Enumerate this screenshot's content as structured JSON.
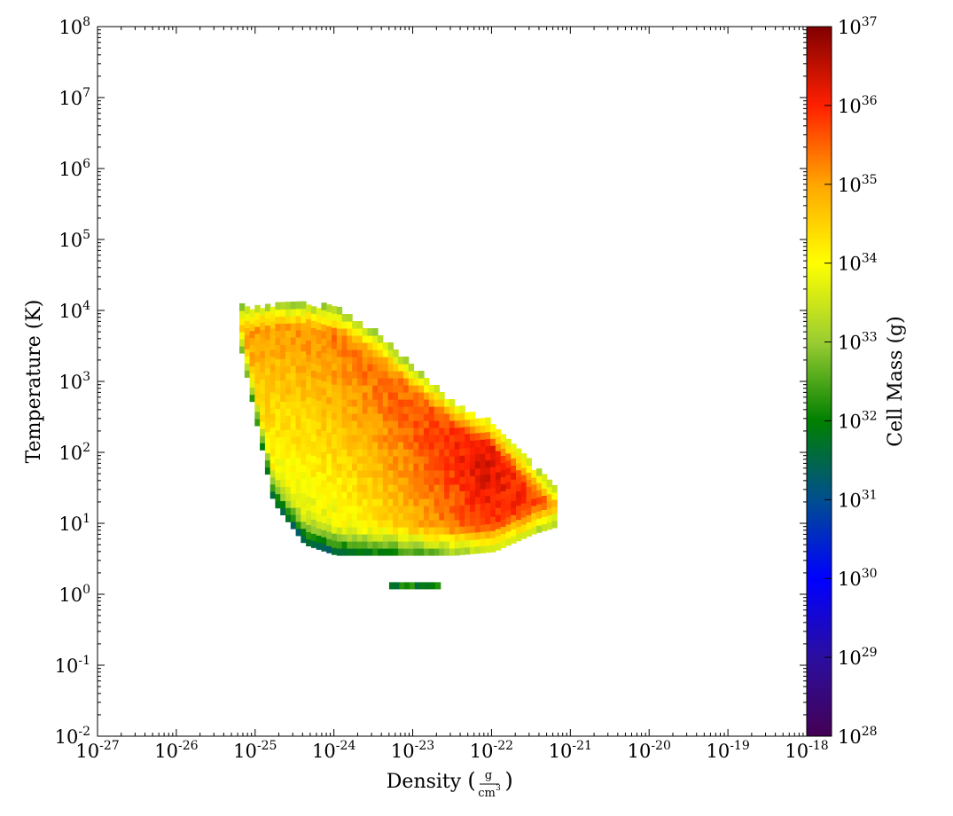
{
  "chart_data": {
    "type": "heatmap",
    "title": "",
    "xlabel": "Density",
    "xlabel_unit_numerator": "g",
    "xlabel_unit_denominator": "cm",
    "xlabel_unit_denominator_exp": "3",
    "ylabel": "Temperature  (K)",
    "colorbar_label": "Cell Mass  (g)",
    "x_scale": "log",
    "y_scale": "log",
    "color_scale": "log",
    "x_log_range": [
      -27,
      -18
    ],
    "y_log_range": [
      -2,
      8
    ],
    "color_log_range": [
      28,
      37
    ],
    "x_tick_exponents": [
      "-27",
      "-26",
      "-25",
      "-24",
      "-23",
      "-22",
      "-21",
      "-20",
      "-19",
      "-18"
    ],
    "y_tick_exponents": [
      "-2",
      "-1",
      "0",
      "1",
      "2",
      "3",
      "4",
      "5",
      "6",
      "7",
      "8"
    ],
    "colorbar_tick_exponents": [
      "28",
      "29",
      "30",
      "31",
      "32",
      "33",
      "34",
      "35",
      "36",
      "37"
    ],
    "tick_base": "10",
    "colormap": [
      "#440154",
      "#2b0ea0",
      "#0000ff",
      "#004f8f",
      "#008000",
      "#9acd32",
      "#ffff00",
      "#ffa500",
      "#ff2000",
      "#800000"
    ],
    "description_of_data": "2D mass-weighted phase histogram: log10 cell mass per (log density, log temperature) bin",
    "main_band": {
      "points": [
        {
          "log_density": -24.6,
          "log_temperature": 3.92,
          "log_mass": 35.2
        },
        {
          "log_density": -24.0,
          "log_temperature": 3.55,
          "log_mass": 35.3
        },
        {
          "log_density": -23.5,
          "log_temperature": 2.95,
          "log_mass": 35.4
        },
        {
          "log_density": -23.0,
          "log_temperature": 2.3,
          "log_mass": 35.6
        },
        {
          "log_density": -22.5,
          "log_temperature": 1.95,
          "log_mass": 36.0
        },
        {
          "log_density": -22.1,
          "log_temperature": 1.7,
          "log_mass": 36.3
        },
        {
          "log_density": -21.6,
          "log_temperature": 1.3,
          "log_mass": 35.9
        },
        {
          "log_density": -21.2,
          "log_temperature": 1.15,
          "log_mass": 35.4
        }
      ]
    },
    "extent": [
      {
        "log_density": -25.2,
        "log_temperature_min": 3.4,
        "log_temperature_max": 4.0
      },
      {
        "log_density": -24.8,
        "log_temperature_min": 1.3,
        "log_temperature_max": 4.05
      },
      {
        "log_density": -24.4,
        "log_temperature_min": 0.7,
        "log_temperature_max": 4.05
      },
      {
        "log_density": -24.0,
        "log_temperature_min": 0.55,
        "log_temperature_max": 4.0
      },
      {
        "log_density": -23.5,
        "log_temperature_min": 0.55,
        "log_temperature_max": 3.65
      },
      {
        "log_density": -23.0,
        "log_temperature_min": 0.55,
        "log_temperature_max": 3.15
      },
      {
        "log_density": -22.5,
        "log_temperature_min": 0.55,
        "log_temperature_max": 2.65
      },
      {
        "log_density": -22.0,
        "log_temperature_min": 0.6,
        "log_temperature_max": 2.35
      },
      {
        "log_density": -21.5,
        "log_temperature_min": 0.85,
        "log_temperature_max": 1.75
      },
      {
        "log_density": -21.2,
        "log_temperature_min": 0.95,
        "log_temperature_max": 1.45
      }
    ],
    "isolated_strip": {
      "log_density_min": -23.3,
      "log_density_max": -22.7,
      "log_temperature": 0.12,
      "log_mass": 32.0
    }
  }
}
